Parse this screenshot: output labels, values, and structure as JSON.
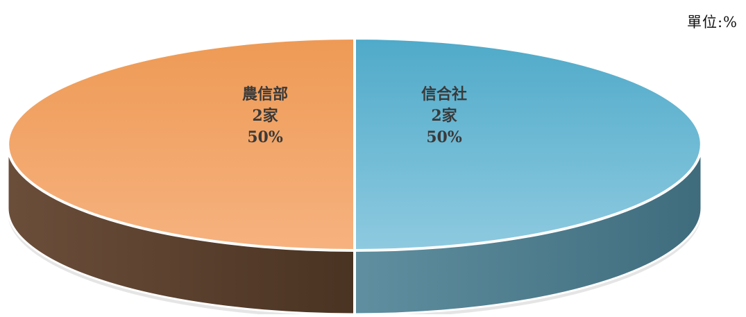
{
  "unit_label": "單位:%",
  "chart_data": {
    "type": "pie",
    "title": "",
    "unit": "單位:%",
    "slices": [
      {
        "label": "農信部",
        "count_label": "2家",
        "percent_label": "50%",
        "value": 50,
        "count": 2
      },
      {
        "label": "信合社",
        "count_label": "2家",
        "percent_label": "50%",
        "value": 50,
        "count": 2
      }
    ],
    "three_d": true,
    "legend": "none"
  },
  "colors": {
    "slice_top": [
      "#8ecae0",
      "#f6b27f"
    ],
    "slice_top_dark": [
      "#4faac9",
      "#ee9a55"
    ],
    "slice_side": [
      "#5f8fa0",
      "#6b4e3a"
    ],
    "slice_side_dark": [
      "#3f6c7d",
      "#4a3322"
    ],
    "label": "#3a3a3a"
  }
}
